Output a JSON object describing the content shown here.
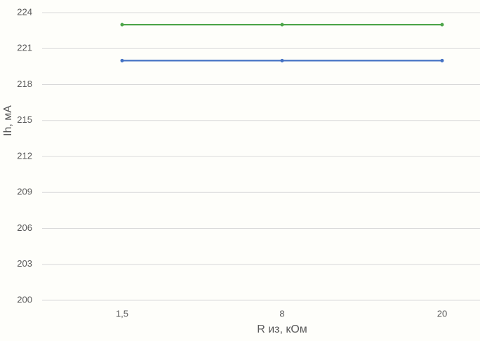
{
  "chart_data": {
    "type": "line",
    "x_label": "R из, кОм",
    "y_label": "Ih, мА",
    "categories": [
      "1,5",
      "8",
      "20"
    ],
    "series": [
      {
        "color": "#4ea64a",
        "values": [
          223,
          223,
          223
        ]
      },
      {
        "color": "#4472c4",
        "values": [
          220,
          220,
          220
        ]
      }
    ],
    "ylim": [
      200,
      224
    ],
    "yticks": [
      200,
      203,
      206,
      209,
      212,
      215,
      218,
      221,
      224
    ],
    "grid": true
  }
}
